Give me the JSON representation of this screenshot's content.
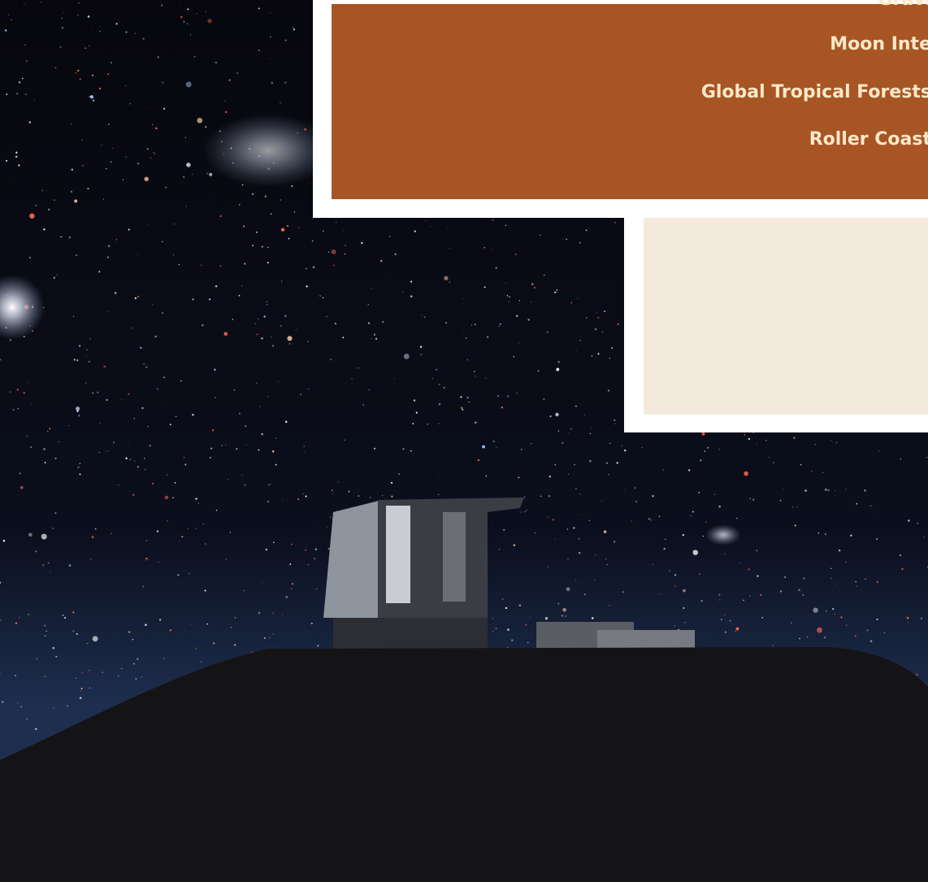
{
  "cover": {
    "headlines": [
      "Gravi",
      "Moon Inte",
      "Global Tropical Forests",
      "Roller Coast"
    ]
  }
}
